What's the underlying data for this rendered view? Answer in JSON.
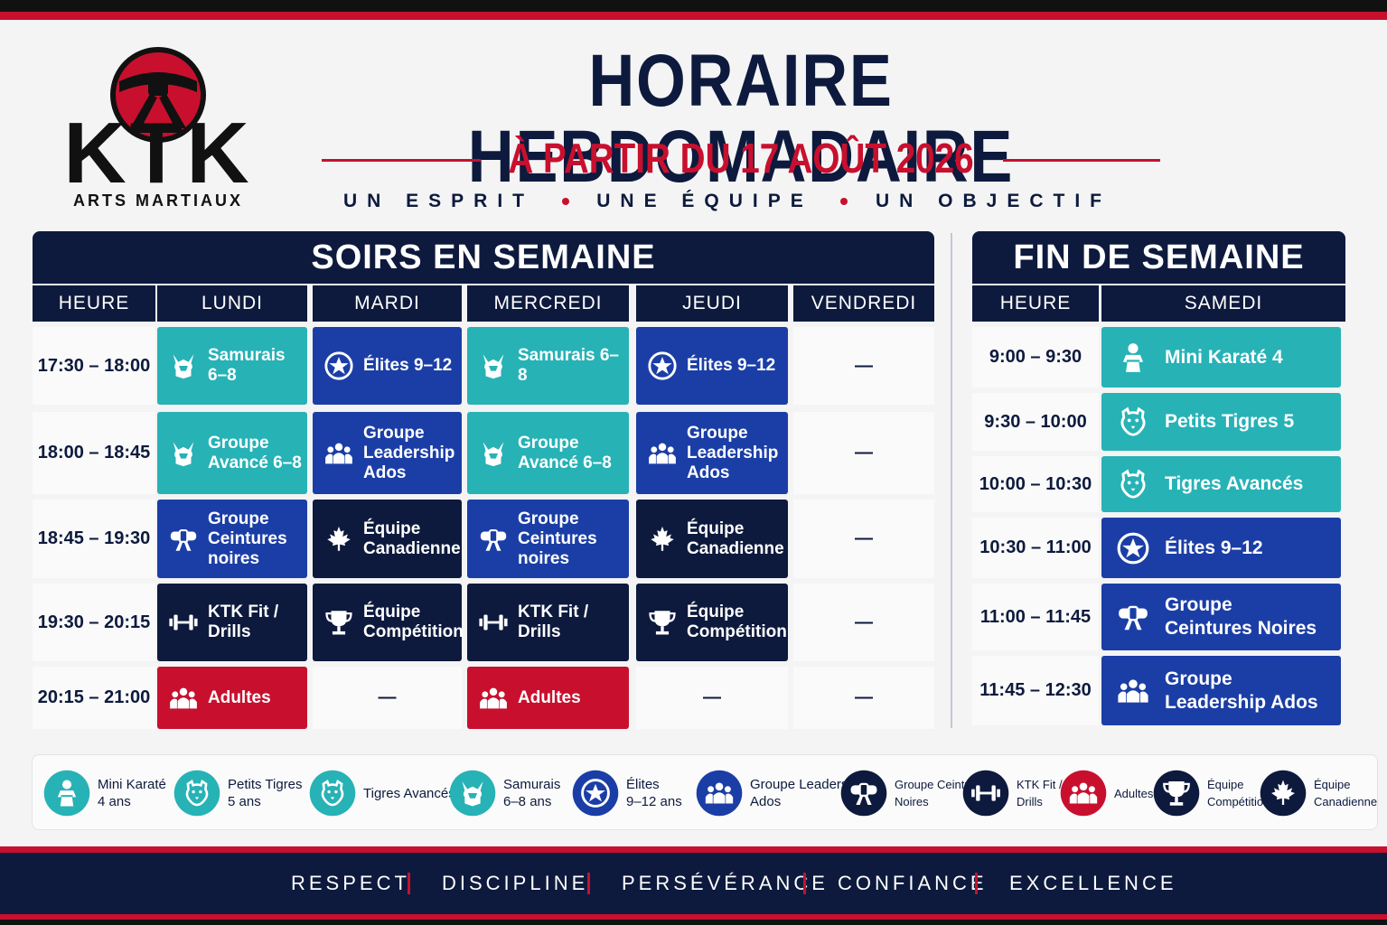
{
  "logo": {
    "brand": "KTK",
    "tagline": "ARTS MARTIAUX"
  },
  "header": {
    "title": "HORAIRE HEBDOMADAIRE",
    "subtitle": "À PARTIR DU 17 AOÛT 2026",
    "motto": [
      "UN ESPRIT",
      "UNE ÉQUIPE",
      "UN OBJECTIF"
    ]
  },
  "palette": {
    "teal": "#27b2b6",
    "blue": "#1b3ea6",
    "navy": "#0d1a3d",
    "red": "#c8102e"
  },
  "weekday": {
    "title": "SOIRS EN SEMAINE",
    "columns": [
      "HEURE",
      "LUNDI",
      "MARDI",
      "MERCREDI",
      "JEUDI",
      "VENDREDI"
    ],
    "rows": [
      {
        "time": "17:30 – 18:00",
        "cells": [
          {
            "label": "Samurais 6–8",
            "style": "teal",
            "icon": "samurai"
          },
          {
            "label": "Élites 9–12",
            "style": "blue",
            "icon": "star"
          },
          {
            "label": "Samurais 6–8",
            "style": "teal",
            "icon": "samurai"
          },
          {
            "label": "Élites 9–12",
            "style": "blue",
            "icon": "star"
          },
          {
            "label": "—"
          }
        ]
      },
      {
        "time": "18:00 – 18:45",
        "cells": [
          {
            "label": "Groupe Avancé 6–8",
            "style": "teal",
            "icon": "samurai"
          },
          {
            "label": "Groupe Leadership Ados",
            "style": "blue",
            "icon": "people"
          },
          {
            "label": "Groupe Avancé 6–8",
            "style": "teal",
            "icon": "samurai"
          },
          {
            "label": "Groupe Leadership Ados",
            "style": "blue",
            "icon": "people"
          },
          {
            "label": "—"
          }
        ]
      },
      {
        "time": "18:45 – 19:30",
        "cells": [
          {
            "label": "Groupe Ceintures noires",
            "style": "blue",
            "icon": "belt"
          },
          {
            "label": "Équipe Canadienne",
            "style": "navy",
            "icon": "leaf"
          },
          {
            "label": "Groupe Ceintures noires",
            "style": "blue",
            "icon": "belt"
          },
          {
            "label": "Équipe Canadienne",
            "style": "navy",
            "icon": "leaf"
          },
          {
            "label": "—"
          }
        ]
      },
      {
        "time": "19:30 – 20:15",
        "cells": [
          {
            "label": "KTK Fit / Drills",
            "style": "navy",
            "icon": "dumbbell"
          },
          {
            "label": "Équipe Compétition",
            "style": "navy",
            "icon": "trophy"
          },
          {
            "label": "KTK Fit / Drills",
            "style": "navy",
            "icon": "dumbbell"
          },
          {
            "label": "Équipe Compétition",
            "style": "navy",
            "icon": "trophy"
          },
          {
            "label": "—"
          }
        ]
      },
      {
        "time": "20:15 – 21:00",
        "cells": [
          {
            "label": "Adultes",
            "style": "red",
            "icon": "people"
          },
          {
            "label": "—"
          },
          {
            "label": "Adultes",
            "style": "red",
            "icon": "people"
          },
          {
            "label": "—"
          },
          {
            "label": "—"
          }
        ]
      }
    ]
  },
  "weekend": {
    "title": "FIN DE SEMAINE",
    "columns": [
      "HEURE",
      "SAMEDI"
    ],
    "rows": [
      {
        "time": "9:00 – 9:30",
        "cells": [
          {
            "label": "Mini Karaté 4",
            "style": "teal",
            "icon": "child"
          }
        ]
      },
      {
        "time": "9:30 – 10:00",
        "cells": [
          {
            "label": "Petits Tigres 5",
            "style": "teal",
            "icon": "tiger"
          }
        ]
      },
      {
        "time": "10:00 – 10:30",
        "cells": [
          {
            "label": "Tigres Avancés",
            "style": "teal",
            "icon": "tiger"
          }
        ]
      },
      {
        "time": "10:30 – 11:00",
        "cells": [
          {
            "label": "Élites 9–12",
            "style": "blue",
            "icon": "star"
          }
        ]
      },
      {
        "time": "11:00 – 11:45",
        "cells": [
          {
            "label": "Groupe Ceintures Noires",
            "style": "blue",
            "icon": "belt"
          }
        ]
      },
      {
        "time": "11:45 – 12:30",
        "cells": [
          {
            "label": "Groupe Leadership Ados",
            "style": "blue",
            "icon": "people"
          }
        ]
      }
    ]
  },
  "legend": {
    "items": [
      {
        "lines": [
          "Mini Karaté",
          "4 ans"
        ],
        "style": "teal",
        "icon": "child"
      },
      {
        "lines": [
          "Petits Tigres",
          "5 ans"
        ],
        "style": "teal",
        "icon": "tiger"
      },
      {
        "lines": [
          "Tigres Avancés"
        ],
        "style": "teal",
        "icon": "tiger"
      },
      {
        "lines": [
          "Samurais",
          "6–8 ans"
        ],
        "style": "teal",
        "icon": "samurai"
      },
      {
        "lines": [
          "Élites",
          "9–12 ans"
        ],
        "style": "blue",
        "icon": "star"
      },
      {
        "lines": [
          "Groupe Leadership",
          "Ados"
        ],
        "style": "blue",
        "icon": "people"
      },
      {
        "lines": [
          "Groupe Ceintures",
          "Noires"
        ],
        "style": "navy",
        "icon": "belt"
      },
      {
        "lines": [
          "KTK Fit /",
          "Drills"
        ],
        "style": "navy",
        "icon": "dumbbell"
      },
      {
        "lines": [
          "Adultes"
        ],
        "style": "red",
        "icon": "people"
      },
      {
        "lines": [
          "Équipe",
          "Compétition"
        ],
        "style": "navy",
        "icon": "trophy"
      },
      {
        "lines": [
          "Équipe",
          "Canadienne"
        ],
        "style": "navy",
        "icon": "leaf"
      }
    ]
  },
  "footer": {
    "values": [
      "RESPECT",
      "DISCIPLINE",
      "PERSÉVÉRANCE",
      "CONFIANCE",
      "EXCELLENCE"
    ]
  }
}
